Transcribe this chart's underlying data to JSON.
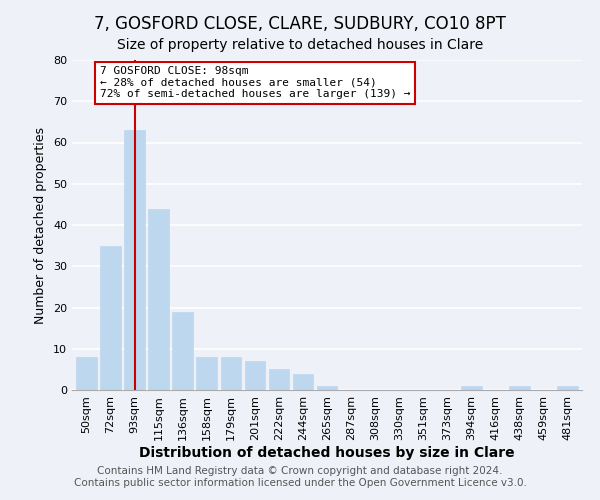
{
  "title": "7, GOSFORD CLOSE, CLARE, SUDBURY, CO10 8PT",
  "subtitle": "Size of property relative to detached houses in Clare",
  "xlabel": "Distribution of detached houses by size in Clare",
  "ylabel": "Number of detached properties",
  "bar_color": "#bdd7ee",
  "bar_edge_color": "#bdd7ee",
  "redline_color": "#cc0000",
  "categories": [
    "50sqm",
    "72sqm",
    "93sqm",
    "115sqm",
    "136sqm",
    "158sqm",
    "179sqm",
    "201sqm",
    "222sqm",
    "244sqm",
    "265sqm",
    "287sqm",
    "308sqm",
    "330sqm",
    "351sqm",
    "373sqm",
    "394sqm",
    "416sqm",
    "438sqm",
    "459sqm",
    "481sqm"
  ],
  "values": [
    8,
    35,
    63,
    44,
    19,
    8,
    8,
    7,
    5,
    4,
    1,
    0,
    0,
    0,
    0,
    0,
    1,
    0,
    1,
    0,
    1
  ],
  "ylim": [
    0,
    80
  ],
  "yticks": [
    0,
    10,
    20,
    30,
    40,
    50,
    60,
    70,
    80
  ],
  "redline_index": 2,
  "annotation_title": "7 GOSFORD CLOSE: 98sqm",
  "annotation_line1": "← 28% of detached houses are smaller (54)",
  "annotation_line2": "72% of semi-detached houses are larger (139) →",
  "annotation_box_edgecolor": "#cc0000",
  "annotation_box_facecolor": "#ffffff",
  "footer1": "Contains HM Land Registry data © Crown copyright and database right 2024.",
  "footer2": "Contains public sector information licensed under the Open Government Licence v3.0.",
  "background_color": "#eef2f8",
  "grid_color": "#ffffff",
  "title_fontsize": 12,
  "subtitle_fontsize": 10,
  "xlabel_fontsize": 10,
  "ylabel_fontsize": 9,
  "footer_fontsize": 7.5,
  "annotation_fontsize": 8,
  "tick_fontsize": 8
}
